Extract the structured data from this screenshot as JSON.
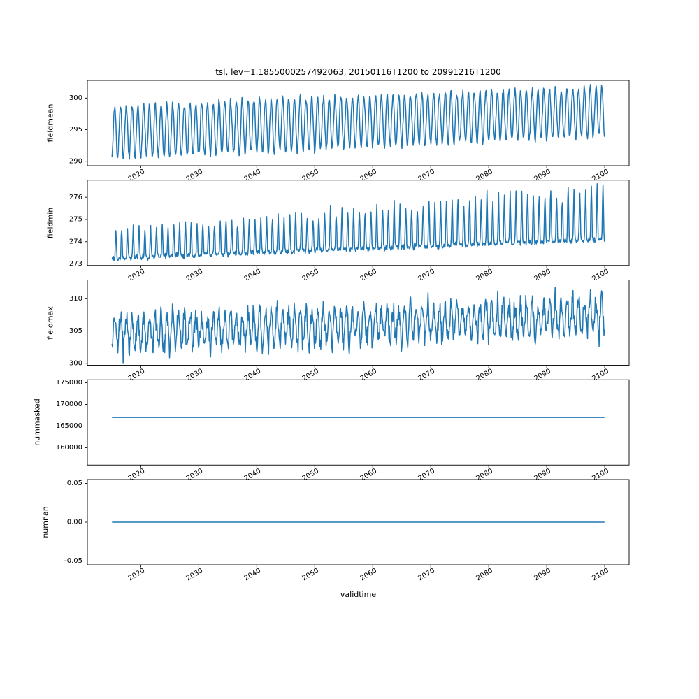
{
  "figure": {
    "title": "tsl, lev=1.1855000257492063, 20150116T1200 to 20991216T1200",
    "xlabel": "validtime",
    "line_color": "#1f77b4",
    "frame_color": "#000000",
    "background": "#ffffff",
    "x_range": [
      2015.04,
      2099.96
    ],
    "xlim": [
      2010.79,
      2104.21
    ],
    "points_per_year": 12,
    "n_points": 1020,
    "xticks": [
      2020,
      2030,
      2040,
      2050,
      2060,
      2070,
      2080,
      2090,
      2100
    ],
    "xtick_labels": [
      "2020",
      "2030",
      "2040",
      "2050",
      "2060",
      "2070",
      "2080",
      "2090",
      "2100"
    ],
    "xtick_rotation_deg": 30
  },
  "chart_data": [
    {
      "type": "line",
      "ylabel": "fieldmean",
      "ylim": [
        289.3,
        302.8
      ],
      "ytick_values": [
        290,
        295,
        300
      ],
      "ytick_labels": [
        "290",
        "295",
        "300"
      ],
      "series": {
        "name": "fieldmean",
        "kind": "seasonal",
        "base_start": 294.6,
        "base_end": 297.9,
        "amp_start": 4.2,
        "amp_end": 3.85,
        "phase": 0.25,
        "noise": 0.8,
        "seed": 11,
        "summary": "Monthly mean soil temperature; annual cycle oscillating ~290.5-299 in 2015 rising steadily to ~294-302 by 2100"
      }
    },
    {
      "type": "line",
      "ylabel": "fieldmin",
      "ylim": [
        272.93,
        276.77
      ],
      "ytick_values": [
        273,
        274,
        275,
        276
      ],
      "ytick_labels": [
        "273",
        "274",
        "275",
        "276"
      ],
      "series": {
        "name": "fieldmin",
        "kind": "seasonal_spiky",
        "base_start": 273.25,
        "base_end": 274.1,
        "base_noise": 0.15,
        "amp_start": 1.25,
        "amp_end": 2.3,
        "amp_noise": 0.2,
        "exponent": 3,
        "phase": 0.45,
        "seed": 22,
        "summary": "Field minimum; flat floor ~273.2 with narrow annual spikes to ~274.5 in 2015, floor and spikes rising to ~274 and ~276.5 by 2100"
      }
    },
    {
      "type": "line",
      "ylabel": "fieldmax",
      "ylim": [
        299.7,
        312.9
      ],
      "ytick_values": [
        300,
        305,
        310
      ],
      "ytick_labels": [
        "300",
        "305",
        "310"
      ],
      "series": {
        "name": "fieldmax",
        "kind": "seasonal",
        "base_start": 304.6,
        "base_end": 307.3,
        "amp_start": 2.4,
        "amp_end": 2.6,
        "phase": 0.25,
        "noise": 2.2,
        "seed": 33,
        "summary": "Field maximum; noisy annual oscillation ~300.5-310 in 2015 rising to ~303-312 by 2100"
      }
    },
    {
      "type": "line",
      "ylabel": "nummasked",
      "ylim": [
        156000,
        175700
      ],
      "ytick_values": [
        160000,
        165000,
        170000,
        175000
      ],
      "ytick_labels": [
        "160000",
        "165000",
        "170000",
        "175000"
      ],
      "series": {
        "name": "nummasked",
        "kind": "constant",
        "value": 167000,
        "summary": "Number of masked points; constant ~167000 over the whole period"
      }
    },
    {
      "type": "line",
      "ylabel": "numnan",
      "ylim": [
        -0.055,
        0.055
      ],
      "ytick_values": [
        -0.05,
        0.0,
        0.05
      ],
      "ytick_labels": [
        "-0.05",
        "0.00",
        "0.05"
      ],
      "series": {
        "name": "numnan",
        "kind": "constant",
        "value": 0,
        "summary": "Number of NaN points; constant 0 over the whole period"
      }
    }
  ]
}
